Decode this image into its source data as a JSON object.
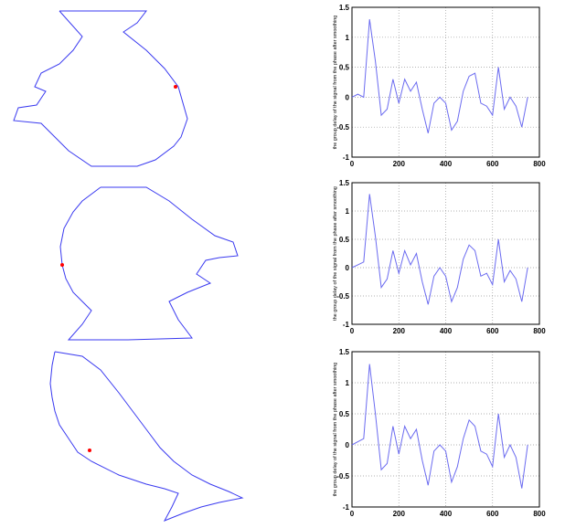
{
  "chart_data": [
    {
      "type": "line",
      "y_label": "the  group delay of the  signal from the phase after smoothing",
      "x": [
        0,
        25,
        50,
        75,
        100,
        125,
        150,
        175,
        200,
        225,
        250,
        275,
        300,
        325,
        350,
        375,
        400,
        425,
        450,
        475,
        500,
        525,
        550,
        575,
        600,
        625,
        650,
        675,
        700,
        725,
        750
      ],
      "series": [
        {
          "color": "#6b6bf0",
          "values": [
            0,
            0.05,
            0,
            1.3,
            0.6,
            -0.3,
            -0.2,
            0.3,
            -0.1,
            0.3,
            0.1,
            0.25,
            -0.2,
            -0.6,
            -0.1,
            0,
            -0.1,
            -0.55,
            -0.4,
            0.1,
            0.35,
            0.4,
            -0.1,
            -0.15,
            -0.3,
            0.5,
            -0.2,
            0,
            -0.15,
            -0.5,
            0
          ]
        }
      ],
      "xlim": [
        0,
        800
      ],
      "xticks": [
        0,
        200,
        400,
        600,
        800
      ],
      "ylim": [
        -1,
        1.5
      ],
      "yticks": [
        -1,
        -0.5,
        0,
        0.5,
        1,
        1.5
      ],
      "grid": true
    },
    {
      "type": "line",
      "y_label": "the  group delay of the  signal from the phase after smoothing",
      "x": [
        0,
        25,
        50,
        75,
        100,
        125,
        150,
        175,
        200,
        225,
        250,
        275,
        300,
        325,
        350,
        375,
        400,
        425,
        450,
        475,
        500,
        525,
        550,
        575,
        600,
        625,
        650,
        675,
        700,
        725,
        750
      ],
      "series": [
        {
          "color": "#6b6bf0",
          "values": [
            0,
            0.05,
            0.1,
            1.3,
            0.55,
            -0.35,
            -0.2,
            0.3,
            -0.1,
            0.3,
            0.05,
            0.25,
            -0.25,
            -0.65,
            -0.15,
            0,
            -0.15,
            -0.6,
            -0.35,
            0.15,
            0.4,
            0.3,
            -0.15,
            -0.1,
            -0.3,
            0.5,
            -0.25,
            -0.05,
            -0.2,
            -0.6,
            0
          ]
        }
      ],
      "xlim": [
        0,
        800
      ],
      "xticks": [
        0,
        200,
        400,
        600,
        800
      ],
      "ylim": [
        -1,
        1.5
      ],
      "yticks": [
        -1,
        -0.5,
        0,
        0.5,
        1,
        1.5
      ],
      "grid": true
    },
    {
      "type": "line",
      "y_label": "the  group delay of the  signal from the phase after smoothing",
      "x": [
        0,
        25,
        50,
        75,
        100,
        125,
        150,
        175,
        200,
        225,
        250,
        275,
        300,
        325,
        350,
        375,
        400,
        425,
        450,
        475,
        500,
        525,
        550,
        575,
        600,
        625,
        650,
        675,
        700,
        725,
        750
      ],
      "series": [
        {
          "color": "#6b6bf0",
          "values": [
            0,
            0.05,
            0.1,
            1.3,
            0.5,
            -0.4,
            -0.3,
            0.3,
            -0.15,
            0.3,
            0.1,
            0.25,
            -0.25,
            -0.65,
            -0.1,
            0,
            -0.1,
            -0.6,
            -0.35,
            0.1,
            0.4,
            0.3,
            -0.1,
            -0.15,
            -0.35,
            0.5,
            -0.2,
            0,
            -0.2,
            -0.7,
            0
          ]
        }
      ],
      "xlim": [
        0,
        800
      ],
      "xticks": [
        0,
        200,
        400,
        600,
        800
      ],
      "ylim": [
        -1,
        1.5
      ],
      "yticks": [
        -1,
        -0.5,
        0,
        0.5,
        1,
        1.5
      ],
      "grid": true
    }
  ]
}
